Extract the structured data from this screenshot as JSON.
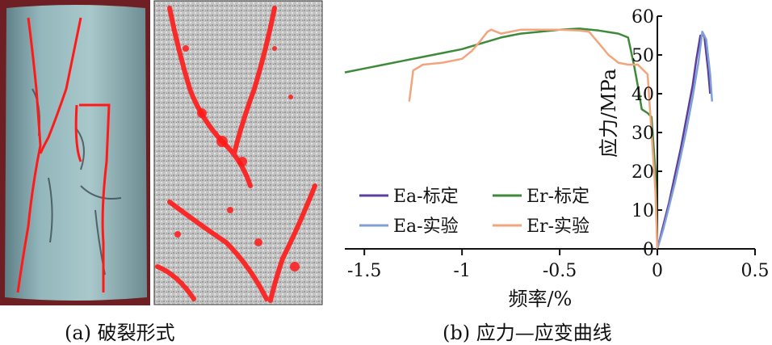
{
  "captions": {
    "a": "(a) 破裂形式",
    "b": "(b) 应力—应变曲线"
  },
  "colors": {
    "ea_calibrated": "#5b3f9e",
    "er_calibrated": "#3f8a3a",
    "ea_experiment": "#7f9fd6",
    "er_experiment": "#f2a57c",
    "crack_red": "#ff1a1a"
  },
  "chart_data": {
    "type": "line",
    "title": "",
    "xlabel": "频率/%",
    "ylabel": "应力/MPa",
    "xlim": [
      -1.6,
      0.5
    ],
    "ylim": [
      0,
      60
    ],
    "xticks": [
      -1.5,
      -1,
      -0.5,
      0,
      0.5
    ],
    "xtick_labels": [
      "-1.5",
      "-1",
      "-0.5",
      "0",
      "0.5"
    ],
    "yticks": [
      0,
      10,
      20,
      30,
      40,
      50,
      60
    ],
    "ytick_labels": [
      "0",
      "10",
      "20",
      "30",
      "40",
      "50",
      "60"
    ],
    "legend_position": "bottom-left",
    "series": [
      {
        "name": "Ea-标定",
        "color": "#5b3f9e",
        "x": [
          0,
          0.03,
          0.06,
          0.09,
          0.12,
          0.15,
          0.18,
          0.2,
          0.22,
          0.24,
          0.26,
          0.27
        ],
        "y": [
          0,
          6,
          12,
          19,
          26,
          34,
          42,
          49,
          55,
          55,
          46,
          40
        ]
      },
      {
        "name": "Er-标定",
        "color": "#3f8a3a",
        "x": [
          -1.6,
          -1.5,
          -1.4,
          -1.3,
          -1.2,
          -1.1,
          -1.0,
          -0.9,
          -0.8,
          -0.7,
          -0.6,
          -0.5,
          -0.4,
          -0.3,
          -0.2,
          -0.15,
          -0.12,
          -0.1,
          -0.08,
          -0.05,
          -0.03,
          -0.01,
          0
        ],
        "y": [
          45.5,
          46.5,
          47.5,
          48.5,
          49.5,
          50.5,
          51.5,
          53,
          54.5,
          55.5,
          56,
          56.5,
          56.8,
          56.3,
          55.5,
          54.5,
          47.5,
          42,
          36,
          35,
          34,
          20,
          0
        ]
      },
      {
        "name": "Ea-实验",
        "color": "#7f9fd6",
        "x": [
          0,
          0.03,
          0.06,
          0.09,
          0.12,
          0.15,
          0.18,
          0.21,
          0.23,
          0.25,
          0.27,
          0.28
        ],
        "y": [
          0,
          5,
          11,
          17,
          24,
          31,
          39,
          48,
          56,
          54,
          45,
          38
        ]
      },
      {
        "name": "Er-实验",
        "color": "#f2a57c",
        "x": [
          -1.27,
          -1.25,
          -1.2,
          -1.1,
          -1.0,
          -0.95,
          -0.9,
          -0.87,
          -0.85,
          -0.8,
          -0.7,
          -0.6,
          -0.5,
          -0.4,
          -0.35,
          -0.3,
          -0.25,
          -0.2,
          -0.15,
          -0.1,
          -0.07,
          -0.05,
          -0.03,
          -0.01,
          0
        ],
        "y": [
          38,
          46,
          47.5,
          48,
          49,
          51,
          54,
          56,
          56.5,
          55.5,
          56.5,
          56.5,
          56.5,
          56.3,
          56,
          53,
          50,
          48,
          47.5,
          47.5,
          46,
          45,
          30,
          15,
          0
        ]
      }
    ]
  }
}
